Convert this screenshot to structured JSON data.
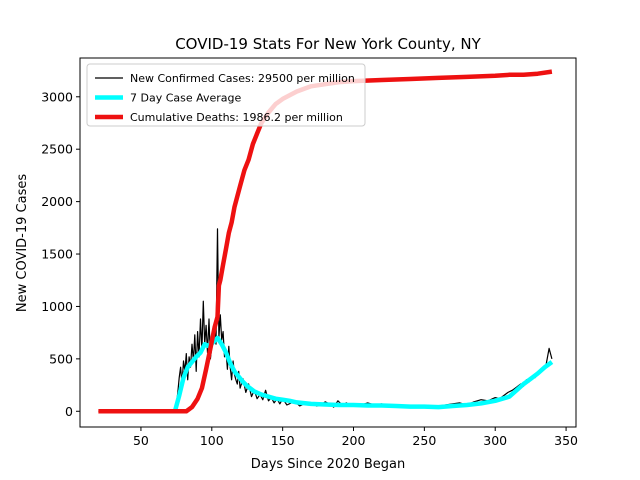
{
  "chart_data": {
    "type": "line",
    "title": "COVID-19 Stats For New York County, NY",
    "xlabel": "Days Since 2020 Began",
    "ylabel": "New COVID-19 Cases",
    "xlim": [
      7,
      357
    ],
    "ylim": [
      -150,
      3370
    ],
    "xticks": [
      50,
      100,
      150,
      200,
      250,
      300,
      350
    ],
    "yticks": [
      0,
      500,
      1000,
      1500,
      2000,
      2500,
      3000
    ],
    "grid": false,
    "legend_position": "top-left",
    "series": [
      {
        "name": "New Confirmed Cases: 29500 per million",
        "color": "#000000",
        "x": [
          20,
          70,
          74,
          75,
          76,
          77,
          78,
          79,
          80,
          81,
          82,
          83,
          84,
          85,
          86,
          87,
          88,
          89,
          90,
          91,
          92,
          93,
          94,
          95,
          96,
          97,
          98,
          99,
          100,
          101,
          102,
          103,
          104,
          105,
          106,
          107,
          108,
          109,
          110,
          111,
          112,
          113,
          114,
          115,
          116,
          117,
          118,
          119,
          120,
          122,
          124,
          126,
          128,
          130,
          132,
          134,
          136,
          138,
          140,
          142,
          144,
          146,
          148,
          150,
          153,
          156,
          159,
          162,
          165,
          168,
          171,
          174,
          177,
          180,
          183,
          186,
          189,
          192,
          195,
          198,
          201,
          205,
          210,
          215,
          220,
          225,
          230,
          235,
          240,
          245,
          250,
          255,
          260,
          265,
          270,
          275,
          280,
          285,
          290,
          295,
          300,
          303,
          306,
          309,
          312,
          315,
          318,
          320,
          322,
          324,
          326,
          328,
          330,
          332,
          334,
          336,
          338,
          340
        ],
        "y": [
          0,
          0,
          20,
          60,
          180,
          320,
          420,
          260,
          480,
          380,
          550,
          300,
          520,
          420,
          640,
          480,
          730,
          380,
          760,
          520,
          880,
          580,
          1050,
          640,
          820,
          560,
          880,
          500,
          620,
          700,
          780,
          640,
          1740,
          700,
          920,
          680,
          760,
          520,
          580,
          400,
          620,
          420,
          300,
          480,
          350,
          300,
          260,
          380,
          220,
          310,
          180,
          260,
          140,
          200,
          120,
          160,
          110,
          200,
          100,
          130,
          80,
          120,
          70,
          120,
          60,
          80,
          90,
          50,
          70,
          60,
          80,
          50,
          60,
          90,
          70,
          40,
          100,
          60,
          80,
          50,
          70,
          60,
          80,
          60,
          70,
          50,
          60,
          40,
          50,
          45,
          55,
          40,
          50,
          60,
          70,
          80,
          60,
          90,
          110,
          100,
          130,
          120,
          150,
          180,
          200,
          230,
          260,
          240,
          300,
          280,
          330,
          320,
          350,
          380,
          400,
          450,
          600,
          500
        ],
        "line_width": 1.2
      },
      {
        "name": "7 Day Case Average",
        "color": "#00ffff",
        "x": [
          74,
          77,
          80,
          83,
          86,
          89,
          92,
          95,
          98,
          101,
          104,
          107,
          110,
          113,
          116,
          119,
          122,
          125,
          130,
          135,
          140,
          145,
          150,
          155,
          160,
          170,
          180,
          190,
          200,
          210,
          220,
          230,
          240,
          250,
          260,
          270,
          280,
          290,
          300,
          310,
          315,
          320,
          325,
          330,
          335,
          340
        ],
        "y": [
          0,
          150,
          320,
          420,
          470,
          520,
          560,
          640,
          620,
          660,
          700,
          640,
          560,
          460,
          380,
          330,
          280,
          240,
          190,
          160,
          140,
          120,
          110,
          100,
          85,
          70,
          65,
          60,
          60,
          55,
          55,
          50,
          45,
          45,
          40,
          50,
          60,
          75,
          100,
          140,
          200,
          260,
          310,
          360,
          420,
          470
        ],
        "line_width": 4.5
      },
      {
        "name": "Cumulative Deaths: 1986.2 per million",
        "color": "#ee1111",
        "x": [
          20,
          82,
          86,
          90,
          93,
          96,
          99,
          102,
          104,
          105,
          106,
          108,
          110,
          112,
          114,
          116,
          118,
          120,
          123,
          126,
          129,
          132,
          135,
          140,
          145,
          150,
          160,
          170,
          180,
          190,
          200,
          220,
          240,
          260,
          280,
          300,
          310,
          320,
          330,
          340
        ],
        "y": [
          0,
          0,
          40,
          120,
          220,
          400,
          600,
          800,
          900,
          1200,
          1250,
          1400,
          1550,
          1700,
          1800,
          1950,
          2050,
          2150,
          2300,
          2400,
          2550,
          2650,
          2750,
          2850,
          2930,
          2980,
          3050,
          3100,
          3120,
          3140,
          3150,
          3160,
          3170,
          3180,
          3190,
          3200,
          3210,
          3210,
          3220,
          3240
        ],
        "line_width": 4.5
      }
    ]
  }
}
